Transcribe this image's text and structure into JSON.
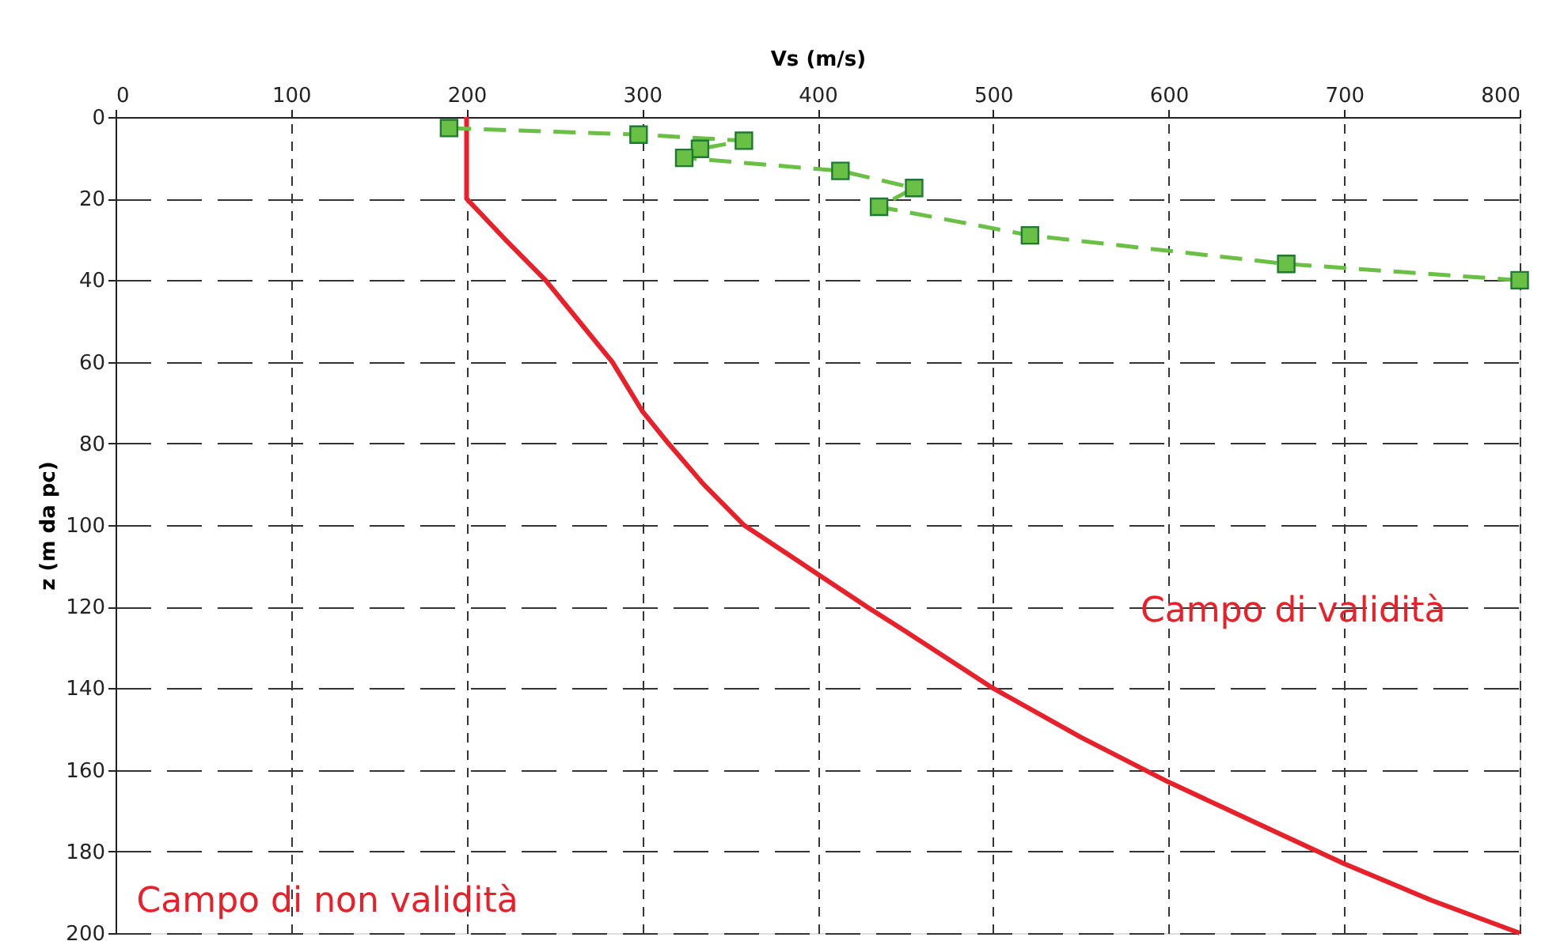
{
  "chart_data": {
    "type": "line",
    "xlabel": "Vs (m/s)",
    "ylabel": "z (m da pc)",
    "xlim": [
      0,
      800
    ],
    "xticks": [
      0,
      100,
      200,
      300,
      400,
      500,
      600,
      700,
      800
    ],
    "ylim": [
      200,
      0
    ],
    "yticks": [
      0,
      20,
      40,
      60,
      80,
      100,
      120,
      140,
      160,
      180,
      200
    ],
    "grid": true,
    "annotations": [
      "Campo di validità",
      "Campo di non validità"
    ],
    "series": [
      {
        "color": "#e8202a",
        "marker": "none",
        "line_style": "solid",
        "x": [
          200,
          200,
          222,
          245,
          264,
          283,
          300,
          315,
          335,
          358,
          400,
          428,
          450,
          500,
          550,
          600,
          650,
          700,
          750,
          800
        ],
        "values": [
          0,
          20,
          30,
          40,
          50,
          60,
          72,
          80,
          90,
          100,
          112,
          120,
          126,
          140,
          152,
          163,
          173,
          183,
          192,
          200
        ]
      },
      {
        "color": "#6abf45",
        "marker": "square",
        "line_style": "dashed",
        "x": [
          190,
          298,
          358,
          333,
          324,
          413,
          455,
          435,
          521,
          667,
          800
        ],
        "values": [
          2.7,
          4.3,
          5.8,
          7.8,
          10,
          13.2,
          17.4,
          22,
          29,
          36,
          40
        ]
      }
    ]
  }
}
